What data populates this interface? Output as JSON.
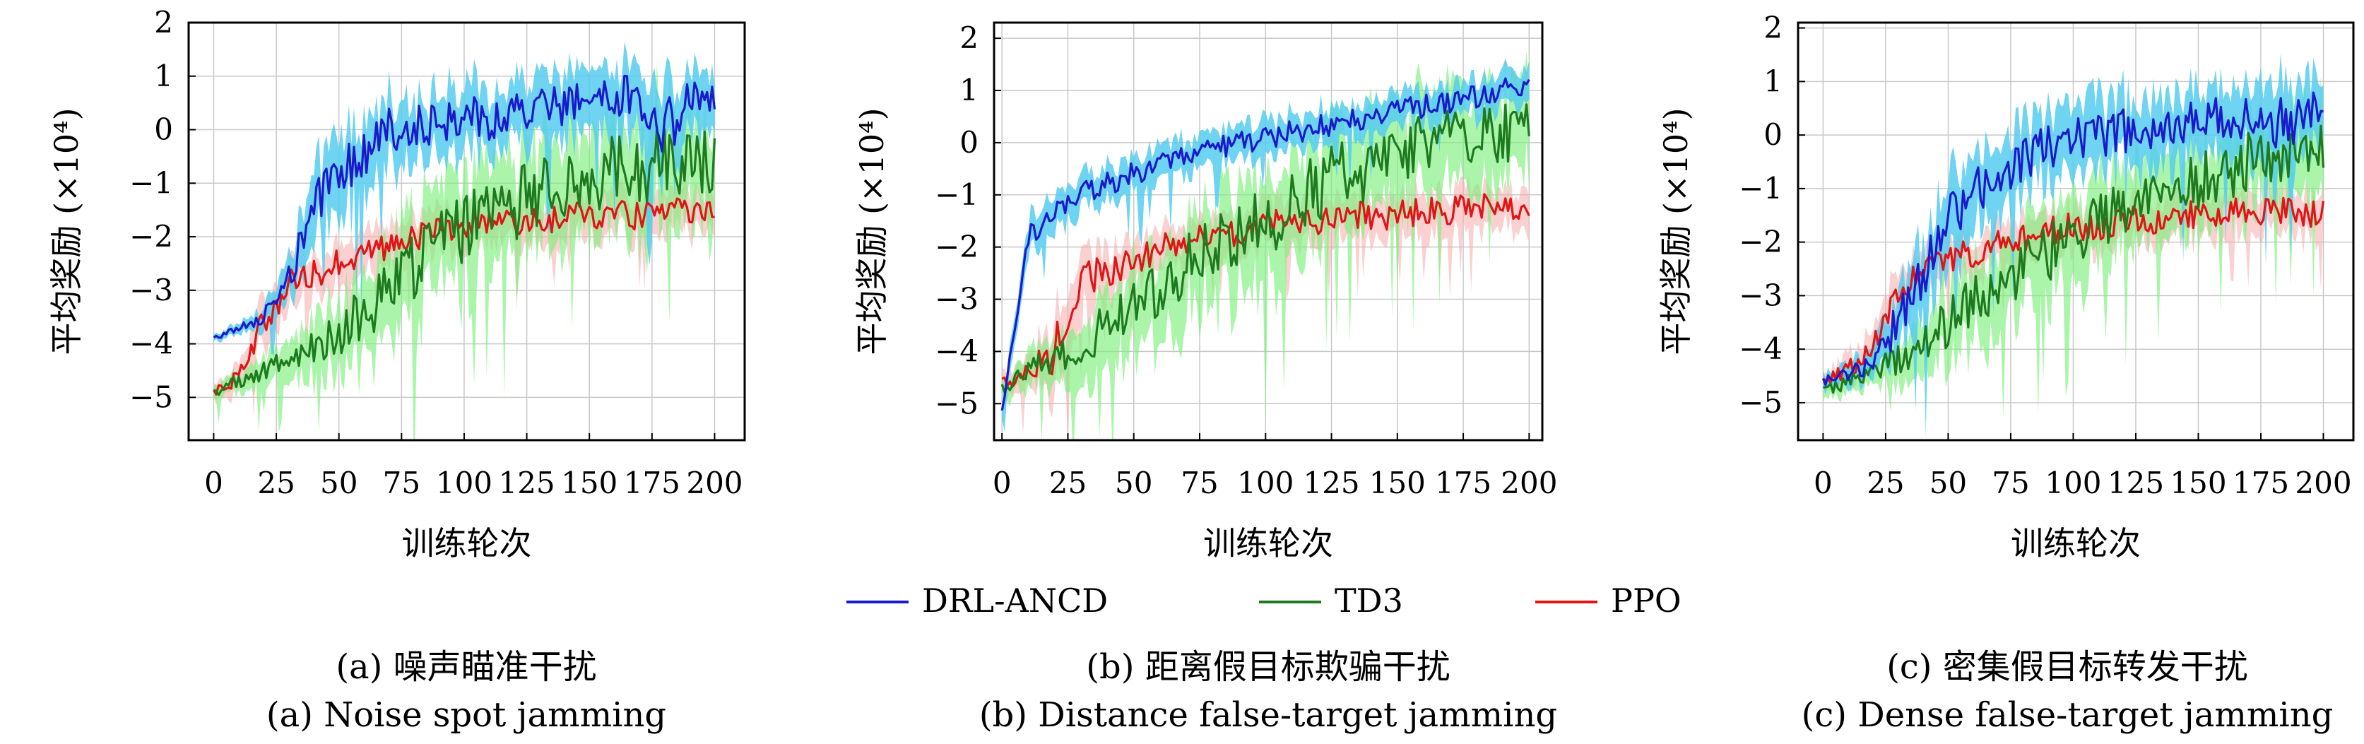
{
  "x_axis_label": "训练轮次",
  "y_axis_label": "平均奖励 (×10⁴)",
  "legend": [
    {
      "label": "DRL-ANCD",
      "color": "#1a1acc"
    },
    {
      "label": "TD3",
      "color": "#1e7a1e"
    },
    {
      "label": "PPO",
      "color": "#e01515"
    }
  ],
  "colors": {
    "drl_band": "#55ccee",
    "td3_band": "#7cf07c",
    "ppo_band": "#f5aaaa",
    "grid": "#c8c8c8",
    "frame": "#000000"
  },
  "captions": [
    {
      "zh": "(a) 噪声瞄准干扰",
      "en": "(a) Noise spot jamming"
    },
    {
      "zh": "(b) 距离假目标欺骗干扰",
      "en": "(b) Distance false-target jamming"
    },
    {
      "zh": "(c) 密集假目标转发干扰",
      "en": "(c) Dense false-target jamming"
    }
  ],
  "chart_data": [
    {
      "type": "line",
      "xlabel": "训练轮次",
      "ylabel": "平均奖励 (×10⁴)",
      "xlim": [
        -10,
        212
      ],
      "ylim": [
        -5.8,
        2
      ],
      "xticks": [
        0,
        25,
        50,
        75,
        100,
        125,
        150,
        175,
        200
      ],
      "yticks": [
        -5,
        -4,
        -3,
        -2,
        -1,
        0,
        1,
        2
      ],
      "grid": true,
      "x": [
        0,
        10,
        20,
        30,
        40,
        50,
        60,
        70,
        80,
        90,
        100,
        110,
        120,
        130,
        140,
        150,
        160,
        170,
        180,
        190,
        200
      ],
      "series": [
        {
          "name": "DRL-ANCD",
          "values": [
            -3.9,
            -3.7,
            -3.5,
            -2.8,
            -1.5,
            -0.8,
            -0.5,
            0.0,
            0.1,
            0.1,
            0.2,
            0.2,
            0.3,
            0.4,
            0.5,
            0.5,
            0.6,
            0.6,
            0.0,
            0.5,
            0.7
          ],
          "band_width": [
            0.1,
            0.15,
            0.3,
            0.6,
            1.0,
            1.1,
            1.0,
            0.9,
            0.9,
            0.9,
            0.9,
            0.9,
            0.9,
            0.9,
            0.9,
            0.9,
            0.9,
            0.9,
            1.2,
            0.9,
            0.8
          ]
        },
        {
          "name": "TD3",
          "values": [
            -4.9,
            -4.7,
            -4.5,
            -4.3,
            -4.1,
            -3.8,
            -3.4,
            -3.0,
            -2.6,
            -2.2,
            -1.9,
            -1.6,
            -1.4,
            -1.2,
            -1.0,
            -0.9,
            -0.8,
            -0.7,
            -0.6,
            -0.6,
            -0.5
          ],
          "band_width": [
            0.2,
            0.3,
            0.4,
            0.6,
            0.8,
            1.0,
            1.2,
            1.3,
            1.4,
            1.5,
            1.5,
            1.5,
            1.5,
            1.5,
            1.5,
            1.5,
            1.5,
            1.5,
            1.5,
            1.5,
            1.5
          ]
        },
        {
          "name": "PPO",
          "values": [
            -4.9,
            -4.6,
            -3.6,
            -2.9,
            -2.7,
            -2.5,
            -2.3,
            -2.2,
            -2.0,
            -1.9,
            -1.8,
            -1.8,
            -1.7,
            -1.7,
            -1.6,
            -1.6,
            -1.6,
            -1.6,
            -1.5,
            -1.6,
            -1.6
          ],
          "band_width": [
            0.2,
            0.4,
            0.7,
            0.7,
            0.6,
            0.6,
            0.6,
            0.6,
            0.6,
            0.6,
            0.6,
            0.6,
            0.6,
            0.6,
            0.6,
            0.6,
            0.6,
            0.6,
            0.6,
            0.6,
            0.6
          ]
        }
      ]
    },
    {
      "type": "line",
      "xlabel": "训练轮次",
      "ylabel": "平均奖励 (×10⁴)",
      "xlim": [
        -3,
        205
      ],
      "ylim": [
        -5.7,
        2.3
      ],
      "xticks": [
        0,
        25,
        50,
        75,
        100,
        125,
        150,
        175,
        200
      ],
      "yticks": [
        -5,
        -4,
        -3,
        -2,
        -1,
        0,
        1,
        2
      ],
      "grid": true,
      "x": [
        0,
        10,
        20,
        30,
        40,
        50,
        60,
        70,
        80,
        90,
        100,
        110,
        120,
        130,
        140,
        150,
        160,
        170,
        180,
        190,
        200
      ],
      "series": [
        {
          "name": "DRL-ANCD",
          "values": [
            -5.2,
            -1.8,
            -1.3,
            -1.0,
            -0.8,
            -0.6,
            -0.4,
            -0.3,
            -0.1,
            0.0,
            0.1,
            0.2,
            0.3,
            0.4,
            0.5,
            0.6,
            0.7,
            0.8,
            0.9,
            1.0,
            1.1
          ],
          "band_width": [
            0.3,
            0.5,
            0.5,
            0.5,
            0.5,
            0.5,
            0.5,
            0.5,
            0.5,
            0.5,
            0.5,
            0.5,
            0.5,
            0.5,
            0.5,
            0.5,
            0.5,
            0.5,
            0.5,
            0.5,
            0.5
          ]
        },
        {
          "name": "TD3",
          "values": [
            -4.7,
            -4.4,
            -4.2,
            -3.9,
            -3.5,
            -3.1,
            -2.8,
            -2.4,
            -2.1,
            -1.8,
            -1.5,
            -1.2,
            -0.9,
            -0.6,
            -0.4,
            -0.2,
            -0.1,
            0.1,
            0.2,
            0.2,
            0.2
          ],
          "band_width": [
            0.3,
            0.5,
            0.7,
            0.9,
            1.1,
            1.2,
            1.3,
            1.4,
            1.5,
            1.5,
            1.5,
            1.5,
            1.5,
            1.5,
            1.5,
            1.4,
            1.4,
            1.4,
            1.3,
            1.3,
            1.3
          ]
        },
        {
          "name": "PPO",
          "values": [
            -4.6,
            -4.4,
            -4.0,
            -2.5,
            -2.5,
            -2.3,
            -2.0,
            -1.9,
            -1.8,
            -1.7,
            -1.6,
            -1.5,
            -1.5,
            -1.4,
            -1.4,
            -1.4,
            -1.3,
            -1.3,
            -1.2,
            -1.3,
            -1.2
          ],
          "band_width": [
            0.3,
            0.5,
            1.0,
            0.9,
            0.7,
            0.6,
            0.6,
            0.6,
            0.6,
            0.6,
            0.6,
            0.6,
            0.6,
            0.6,
            0.6,
            0.6,
            0.6,
            0.6,
            0.6,
            0.6,
            0.6
          ]
        }
      ]
    },
    {
      "type": "line",
      "xlabel": "训练轮次",
      "ylabel": "平均奖励 (×10⁴)",
      "xlim": [
        -10,
        212
      ],
      "ylim": [
        -5.7,
        2.1
      ],
      "xticks": [
        0,
        25,
        50,
        75,
        100,
        125,
        150,
        175,
        200
      ],
      "yticks": [
        -5,
        -4,
        -3,
        -2,
        -1,
        0,
        1,
        2
      ],
      "grid": true,
      "x": [
        0,
        10,
        20,
        30,
        40,
        50,
        60,
        70,
        80,
        90,
        100,
        110,
        120,
        130,
        140,
        150,
        160,
        170,
        180,
        190,
        200
      ],
      "series": [
        {
          "name": "DRL-ANCD",
          "values": [
            -4.6,
            -4.5,
            -4.2,
            -3.5,
            -2.6,
            -1.6,
            -1.0,
            -0.7,
            -0.4,
            -0.2,
            0.0,
            0.0,
            0.1,
            0.1,
            0.2,
            0.2,
            0.3,
            0.3,
            0.1,
            0.3,
            0.5
          ],
          "band_width": [
            0.2,
            0.3,
            0.5,
            0.9,
            1.1,
            1.2,
            1.1,
            1.0,
            1.0,
            1.0,
            1.0,
            1.0,
            1.0,
            1.0,
            1.0,
            1.0,
            1.0,
            1.0,
            1.3,
            1.0,
            0.9
          ]
        },
        {
          "name": "TD3",
          "values": [
            -4.8,
            -4.6,
            -4.4,
            -4.2,
            -3.9,
            -3.5,
            -3.1,
            -2.8,
            -2.5,
            -2.2,
            -1.9,
            -1.6,
            -1.4,
            -1.2,
            -1.0,
            -0.9,
            -0.7,
            -0.5,
            -0.4,
            -0.3,
            -0.2
          ],
          "band_width": [
            0.3,
            0.3,
            0.4,
            0.6,
            0.8,
            1.0,
            1.1,
            1.2,
            1.2,
            1.2,
            1.2,
            1.2,
            1.2,
            1.2,
            1.2,
            1.2,
            1.2,
            1.2,
            1.2,
            1.2,
            1.2
          ]
        },
        {
          "name": "PPO",
          "values": [
            -4.6,
            -4.4,
            -3.9,
            -3.0,
            -2.5,
            -2.3,
            -2.2,
            -2.0,
            -1.9,
            -1.8,
            -1.7,
            -1.7,
            -1.6,
            -1.6,
            -1.5,
            -1.5,
            -1.5,
            -1.4,
            -1.4,
            -1.5,
            -1.4
          ],
          "band_width": [
            0.2,
            0.4,
            0.6,
            0.7,
            0.6,
            0.6,
            0.6,
            0.6,
            0.6,
            0.6,
            0.6,
            0.6,
            0.6,
            0.6,
            0.6,
            0.6,
            0.6,
            0.6,
            0.6,
            0.6,
            0.6
          ]
        }
      ]
    }
  ]
}
